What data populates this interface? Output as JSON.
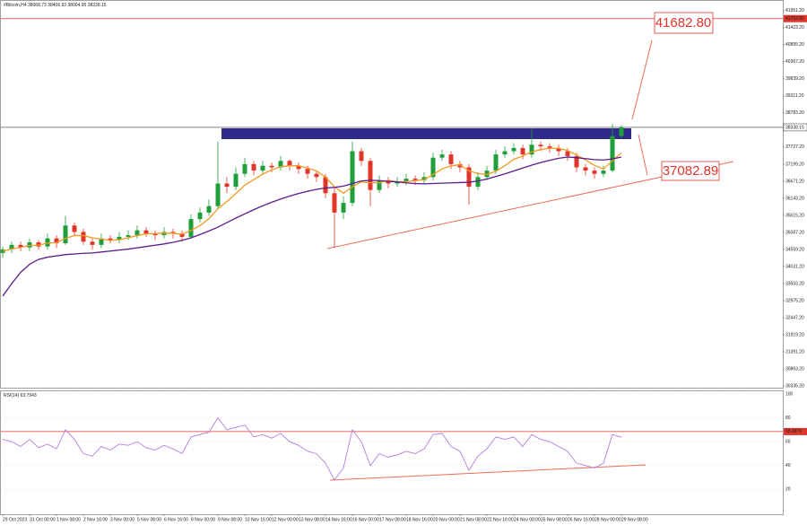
{
  "chart_data": {
    "type": "candlestick",
    "symbol": "#Bitcoin,H4",
    "candles": [
      [
        34450,
        34650,
        34300,
        34560
      ],
      [
        34560,
        34800,
        34450,
        34700
      ],
      [
        34700,
        34800,
        34500,
        34620
      ],
      [
        34620,
        34900,
        34500,
        34780
      ],
      [
        34780,
        34850,
        34550,
        34650
      ],
      [
        34650,
        35050,
        34550,
        34900
      ],
      [
        34900,
        35000,
        34600,
        34750
      ],
      [
        34750,
        35600,
        34700,
        35300
      ],
      [
        35300,
        35400,
        35000,
        35100
      ],
      [
        35100,
        35200,
        34700,
        34800
      ],
      [
        34800,
        34900,
        34550,
        34700
      ],
      [
        34700,
        35050,
        34600,
        34900
      ],
      [
        34900,
        35000,
        34750,
        34850
      ],
      [
        34850,
        35100,
        34750,
        34950
      ],
      [
        34950,
        35150,
        34850,
        35000
      ],
      [
        35000,
        35300,
        34900,
        35150
      ],
      [
        35150,
        35250,
        34950,
        35050
      ],
      [
        35050,
        35150,
        34850,
        35000
      ],
      [
        35000,
        35250,
        34900,
        35100
      ],
      [
        35100,
        35200,
        34900,
        35050
      ],
      [
        35050,
        35150,
        34800,
        34950
      ],
      [
        34950,
        35650,
        34900,
        35500
      ],
      [
        35500,
        35850,
        35400,
        35700
      ],
      [
        35700,
        36100,
        35600,
        35900
      ],
      [
        35900,
        37900,
        35800,
        36600
      ],
      [
        36600,
        36800,
        36300,
        36500
      ],
      [
        36500,
        37100,
        36400,
        36900
      ],
      [
        36900,
        37400,
        36800,
        37200
      ],
      [
        37200,
        37300,
        36850,
        37000
      ],
      [
        37000,
        37300,
        36900,
        37150
      ],
      [
        37150,
        37250,
        36950,
        37100
      ],
      [
        37100,
        37450,
        37000,
        37300
      ],
      [
        37300,
        37350,
        37000,
        37150
      ],
      [
        37150,
        37250,
        36900,
        37050
      ],
      [
        37050,
        37150,
        36750,
        36900
      ],
      [
        36900,
        37000,
        36650,
        36800
      ],
      [
        36800,
        36900,
        36150,
        36300
      ],
      [
        36300,
        36450,
        34600,
        35700
      ],
      [
        35700,
        36200,
        35500,
        36000
      ],
      [
        36000,
        37900,
        35900,
        37600
      ],
      [
        37600,
        37700,
        37150,
        37300
      ],
      [
        37300,
        37400,
        35900,
        36400
      ],
      [
        36400,
        36850,
        36300,
        36700
      ],
      [
        36700,
        36800,
        36450,
        36600
      ],
      [
        36600,
        36800,
        36500,
        36650
      ],
      [
        36650,
        36900,
        36550,
        36750
      ],
      [
        36750,
        36850,
        36550,
        36700
      ],
      [
        36700,
        36950,
        36600,
        36800
      ],
      [
        36800,
        37550,
        36700,
        37400
      ],
      [
        37400,
        37650,
        37300,
        37500
      ],
      [
        37500,
        37600,
        37050,
        37200
      ],
      [
        37200,
        37300,
        36950,
        37100
      ],
      [
        37100,
        37200,
        35950,
        36500
      ],
      [
        36500,
        36950,
        36400,
        36800
      ],
      [
        36800,
        37150,
        36700,
        37000
      ],
      [
        37000,
        37650,
        36900,
        37500
      ],
      [
        37500,
        37750,
        37400,
        37600
      ],
      [
        37600,
        37850,
        37500,
        37700
      ],
      [
        37700,
        37800,
        37350,
        37500
      ],
      [
        37500,
        38300,
        37400,
        37800
      ],
      [
        37800,
        37900,
        37600,
        37750
      ],
      [
        37750,
        37850,
        37550,
        37700
      ],
      [
        37700,
        37800,
        37450,
        37600
      ],
      [
        37600,
        37700,
        37300,
        37450
      ],
      [
        37450,
        37550,
        36950,
        37100
      ],
      [
        37100,
        37200,
        36850,
        37000
      ],
      [
        37000,
        37100,
        36750,
        36900
      ],
      [
        36900,
        37150,
        36800,
        37000
      ],
      [
        37000,
        38450,
        36950,
        38068.73
      ],
      [
        38068.73,
        38406.93,
        38004.95,
        38338.15
      ]
    ],
    "up_color": "#1f9e3a",
    "down_color": "#e0352b",
    "series": [
      {
        "color": "#f39a1e",
        "values": [
          34500,
          34580,
          34620,
          34680,
          34690,
          34760,
          34770,
          34900,
          34990,
          34990,
          34920,
          34880,
          34840,
          34860,
          34920,
          34990,
          35040,
          35050,
          35070,
          35060,
          35030,
          35150,
          35300,
          35510,
          35820,
          36040,
          36290,
          36550,
          36720,
          36890,
          37020,
          37120,
          37150,
          37150,
          37080,
          36990,
          36800,
          36500,
          36300,
          36500,
          36650,
          36620,
          36620,
          36700,
          36650,
          36660,
          36690,
          36720,
          36880,
          37050,
          37150,
          37180,
          36990,
          36910,
          36880,
          36980,
          37150,
          37350,
          37450,
          37580,
          37650,
          37690,
          37690,
          37620,
          37480,
          37330,
          37160,
          37050,
          37300,
          37550
        ]
      },
      {
        "color": "#5b1a8c",
        "values": [
          33114,
          33500,
          33850,
          34100,
          34250,
          34320,
          34360,
          34400,
          34420,
          34440,
          34450,
          34480,
          34510,
          34540,
          34570,
          34610,
          34650,
          34690,
          34730,
          34780,
          34840,
          34920,
          35020,
          35130,
          35250,
          35390,
          35530,
          35660,
          35790,
          35910,
          36020,
          36120,
          36210,
          36290,
          36360,
          36420,
          36460,
          36480,
          36520,
          36600,
          36680,
          36700,
          36690,
          36670,
          36650,
          36620,
          36600,
          36590,
          36600,
          36610,
          36620,
          36630,
          36640,
          36680,
          36740,
          36820,
          36900,
          36990,
          37080,
          37170,
          37250,
          37320,
          37380,
          37420,
          37400,
          37370,
          37340,
          37330,
          37360,
          37420
        ]
      }
    ],
    "ylim": [
      30335.2,
      42170
    ],
    "yticks": [
      {
        "value": 30335.2,
        "label": "30335.20"
      },
      {
        "value": 30863.2,
        "label": "30863.20"
      },
      {
        "value": 31391.2,
        "label": "31391.20"
      },
      {
        "value": 31919.2,
        "label": "31919.20"
      },
      {
        "value": 32447.2,
        "label": "32447.20"
      },
      {
        "value": 32975.2,
        "label": "32975.20"
      },
      {
        "value": 33503.2,
        "label": "33503.20"
      },
      {
        "value": 34031.2,
        "label": "34031.20"
      },
      {
        "value": 34559.2,
        "label": "34559.20"
      },
      {
        "value": 35087.2,
        "label": "35087.20"
      },
      {
        "value": 35615.2,
        "label": "35615.20"
      },
      {
        "value": 36143.2,
        "label": "36143.20"
      },
      {
        "value": 36671.2,
        "label": "36671.20"
      },
      {
        "value": 37199.2,
        "label": "37199.20"
      },
      {
        "value": 37727.2,
        "label": "37727.20"
      },
      {
        "value": 38783.2,
        "label": "38783.20"
      },
      {
        "value": 39311.2,
        "label": "39311.20"
      },
      {
        "value": 39839.2,
        "label": "39839.20"
      },
      {
        "value": 40367.2,
        "label": "40367.20"
      },
      {
        "value": 40895.2,
        "label": "40895.20"
      },
      {
        "value": 41423.2,
        "label": "41423.20"
      },
      {
        "value": 41951.2,
        "label": "41951.20"
      }
    ],
    "resistance_level": 41704.85,
    "annotations": [
      "41682.80",
      "37082.89"
    ],
    "rsi": {
      "name": "RSI(14)",
      "color": "#b57edc",
      "level": 68.4874,
      "values": [
        62,
        60,
        56,
        62,
        55,
        58,
        54,
        70,
        62,
        50,
        48,
        56,
        53,
        58,
        57,
        60,
        55,
        53,
        57,
        54,
        50,
        64,
        66,
        68,
        80,
        70,
        72,
        74,
        64,
        66,
        63,
        67,
        60,
        57,
        52,
        50,
        42,
        28,
        38,
        70,
        60,
        40,
        50,
        47,
        49,
        52,
        50,
        54,
        66,
        67,
        56,
        52,
        36,
        48,
        54,
        64,
        62,
        64,
        56,
        66,
        62,
        60,
        56,
        52,
        42,
        40,
        38,
        42,
        66,
        63.7943
      ],
      "ylim": [
        0,
        100
      ],
      "yticks": [
        20,
        40,
        60,
        80,
        100
      ]
    },
    "time_labels": [
      "29 Oct 2023",
      "31 Oct 00:00",
      "1 Nov 08:00",
      "2 Nov 16:00",
      "3 Nov 00:00",
      "5 Nov 08:00",
      "6 Nov 16:00",
      "8 Nov 00:00",
      "9 Nov 08:00",
      "10 Nov 16:00",
      "12 Nov 00:00",
      "13 Nov 08:00",
      "14 Nov 16:00",
      "16 Nov 00:00",
      "17 Nov 08:00",
      "18 Nov 16:00",
      "20 Nov 00:00",
      "21 Nov 08:00",
      "22 Nov 16:00",
      "24 Nov 00:00",
      "25 Nov 08:00",
      "26 Nov 16:00",
      "28 Nov 00:00",
      "29 Nov 08:00"
    ]
  }
}
